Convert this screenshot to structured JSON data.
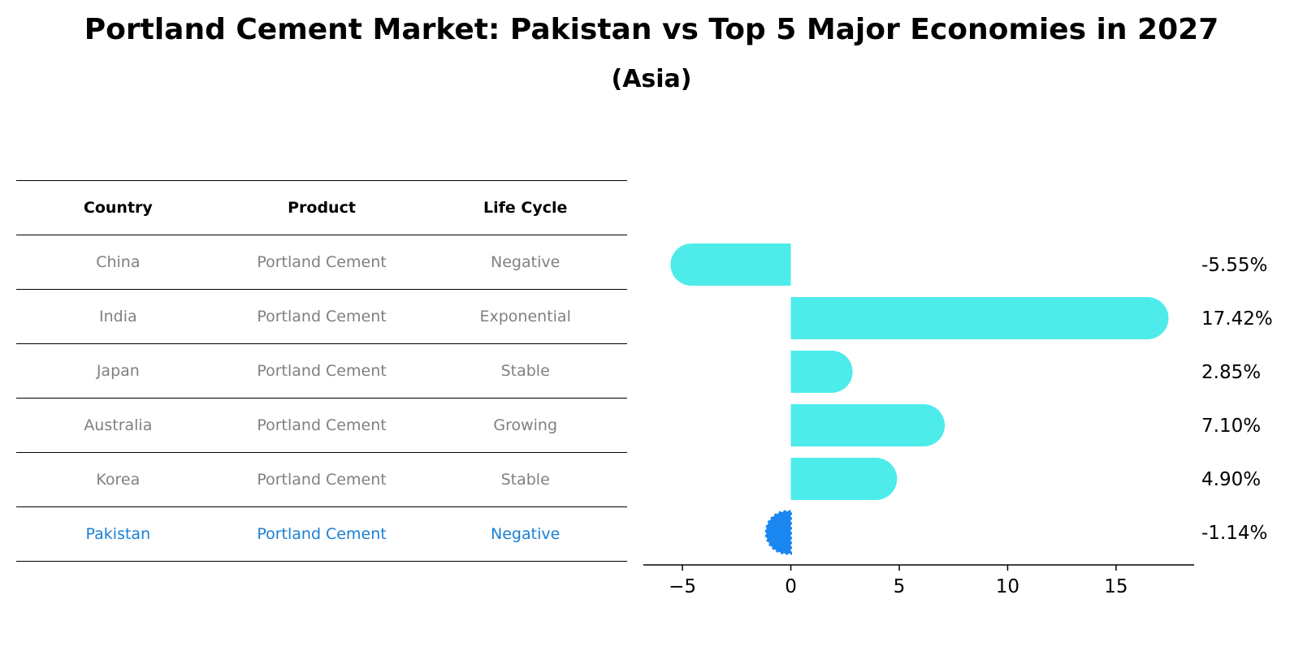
{
  "header": {
    "title": "Portland Cement Market: Pakistan vs Top 5 Major Economies in 2027",
    "subtitle": "(Asia)"
  },
  "table": {
    "columns": [
      "Country",
      "Product",
      "Life Cycle"
    ],
    "rows": [
      [
        "China",
        "Portland Cement",
        "Negative"
      ],
      [
        "India",
        "Portland Cement",
        "Exponential"
      ],
      [
        "Japan",
        "Portland Cement",
        "Stable"
      ],
      [
        "Australia",
        "Portland Cement",
        "Growing"
      ],
      [
        "Korea",
        "Portland Cement",
        "Stable"
      ],
      [
        "Pakistan",
        "Portland Cement",
        "Negative"
      ]
    ],
    "highlight_row": 5
  },
  "colors": {
    "bar": "#4deceb",
    "highlight_bar": "#1a86f0",
    "highlight_text": "#1a7fd6",
    "table_text": "#808080"
  },
  "chart_data": {
    "type": "bar",
    "orientation": "horizontal",
    "categories": [
      "China",
      "India",
      "Japan",
      "Australia",
      "Korea",
      "Pakistan"
    ],
    "values": [
      -5.55,
      17.42,
      2.85,
      7.1,
      4.9,
      -1.14
    ],
    "value_labels": [
      "-5.55%",
      "17.42%",
      "2.85%",
      "7.10%",
      "4.90%",
      "-1.14%"
    ],
    "xlim": [
      -6.8,
      18.6
    ],
    "xticks": [
      -5,
      0,
      5,
      10,
      15
    ],
    "xtick_labels": [
      "−5",
      "0",
      "5",
      "10",
      "15"
    ],
    "highlight_index": 5,
    "xlabel": "",
    "ylabel": ""
  }
}
